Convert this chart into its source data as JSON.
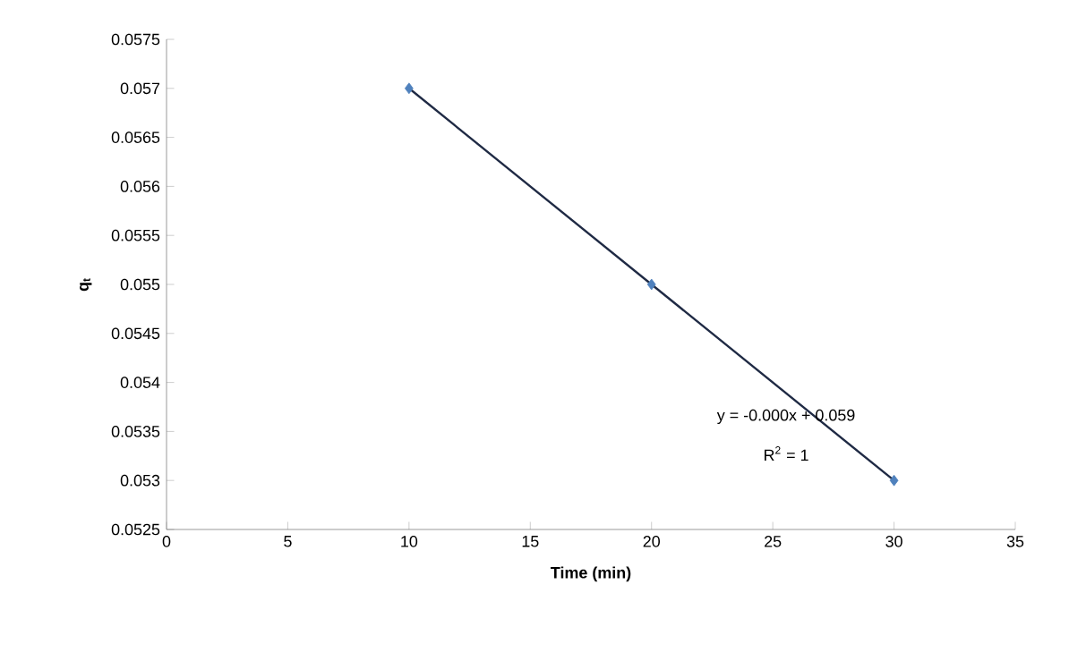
{
  "chart_data": {
    "type": "scatter",
    "xlabel": "Time (min)",
    "ylabel": "q$_{t}$",
    "xlim": [
      0,
      35
    ],
    "xticks": [
      0,
      5,
      10,
      15,
      20,
      25,
      30,
      35
    ],
    "ylim": [
      0.0525,
      0.0575
    ],
    "yticks": [
      0.0525,
      0.053,
      0.0535,
      0.054,
      0.0545,
      0.055,
      0.0555,
      0.056,
      0.0565,
      0.057,
      0.0575
    ],
    "series": [
      {
        "color": "#4f81bd",
        "marker": "diamond",
        "x": [
          10,
          20,
          30
        ],
        "values": [
          0.057,
          0.055,
          0.053
        ]
      },
      {
        "type": "line",
        "color": "#1f2a44",
        "marker": "none",
        "line_style": "solid",
        "x": [
          10,
          30
        ],
        "values": [
          0.057,
          0.053
        ]
      }
    ],
    "annotations": [
      "y = -0.000x + 0.059",
      "R$^{2}$ = 1"
    ],
    "grid": false
  }
}
